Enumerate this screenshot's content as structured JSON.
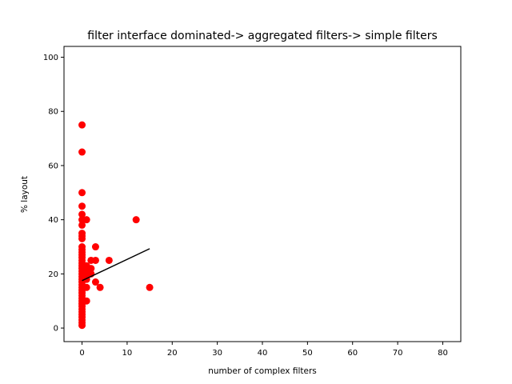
{
  "chart_data": {
    "type": "scatter",
    "title": "filter interface dominated-> aggregated filters-> simple filters",
    "xlabel": "number of complex filters",
    "ylabel": "% layout",
    "xlim": [
      -4,
      84
    ],
    "ylim": [
      -5,
      104
    ],
    "xticks": [
      0,
      10,
      20,
      30,
      40,
      50,
      60,
      70,
      80
    ],
    "yticks": [
      0,
      20,
      40,
      60,
      80,
      100
    ],
    "grid": false,
    "point_color": "#ff0000",
    "line_color": "#000000",
    "points": [
      {
        "x": 0,
        "y": 75
      },
      {
        "x": 0,
        "y": 65
      },
      {
        "x": 0,
        "y": 50
      },
      {
        "x": 0,
        "y": 45
      },
      {
        "x": 0,
        "y": 42
      },
      {
        "x": 0,
        "y": 40
      },
      {
        "x": 0,
        "y": 38
      },
      {
        "x": 0,
        "y": 35
      },
      {
        "x": 0,
        "y": 34
      },
      {
        "x": 0,
        "y": 33
      },
      {
        "x": 0,
        "y": 30
      },
      {
        "x": 0,
        "y": 29
      },
      {
        "x": 0,
        "y": 28
      },
      {
        "x": 0,
        "y": 27
      },
      {
        "x": 0,
        "y": 26
      },
      {
        "x": 0,
        "y": 25
      },
      {
        "x": 0,
        "y": 24
      },
      {
        "x": 0,
        "y": 23
      },
      {
        "x": 0,
        "y": 22
      },
      {
        "x": 0,
        "y": 21
      },
      {
        "x": 0,
        "y": 20
      },
      {
        "x": 0,
        "y": 19
      },
      {
        "x": 0,
        "y": 18
      },
      {
        "x": 0,
        "y": 17
      },
      {
        "x": 0,
        "y": 16
      },
      {
        "x": 0,
        "y": 15
      },
      {
        "x": 0,
        "y": 14
      },
      {
        "x": 0,
        "y": 13
      },
      {
        "x": 0,
        "y": 12
      },
      {
        "x": 0,
        "y": 11
      },
      {
        "x": 0,
        "y": 10
      },
      {
        "x": 0,
        "y": 9
      },
      {
        "x": 0,
        "y": 8
      },
      {
        "x": 0,
        "y": 7
      },
      {
        "x": 0,
        "y": 6
      },
      {
        "x": 0,
        "y": 5
      },
      {
        "x": 0,
        "y": 4
      },
      {
        "x": 0,
        "y": 3
      },
      {
        "x": 0,
        "y": 2
      },
      {
        "x": 0,
        "y": 1
      },
      {
        "x": 1,
        "y": 40
      },
      {
        "x": 1,
        "y": 23
      },
      {
        "x": 1,
        "y": 22
      },
      {
        "x": 1,
        "y": 20
      },
      {
        "x": 1,
        "y": 18
      },
      {
        "x": 1,
        "y": 15
      },
      {
        "x": 1,
        "y": 10
      },
      {
        "x": 2,
        "y": 25
      },
      {
        "x": 2,
        "y": 22
      },
      {
        "x": 2,
        "y": 20
      },
      {
        "x": 3,
        "y": 30
      },
      {
        "x": 3,
        "y": 25
      },
      {
        "x": 3,
        "y": 17
      },
      {
        "x": 4,
        "y": 15
      },
      {
        "x": 6,
        "y": 25
      },
      {
        "x": 12,
        "y": 40
      },
      {
        "x": 15,
        "y": 15
      }
    ],
    "trend_line": {
      "x": [
        0,
        15
      ],
      "y": [
        17.5,
        29.3
      ]
    }
  }
}
